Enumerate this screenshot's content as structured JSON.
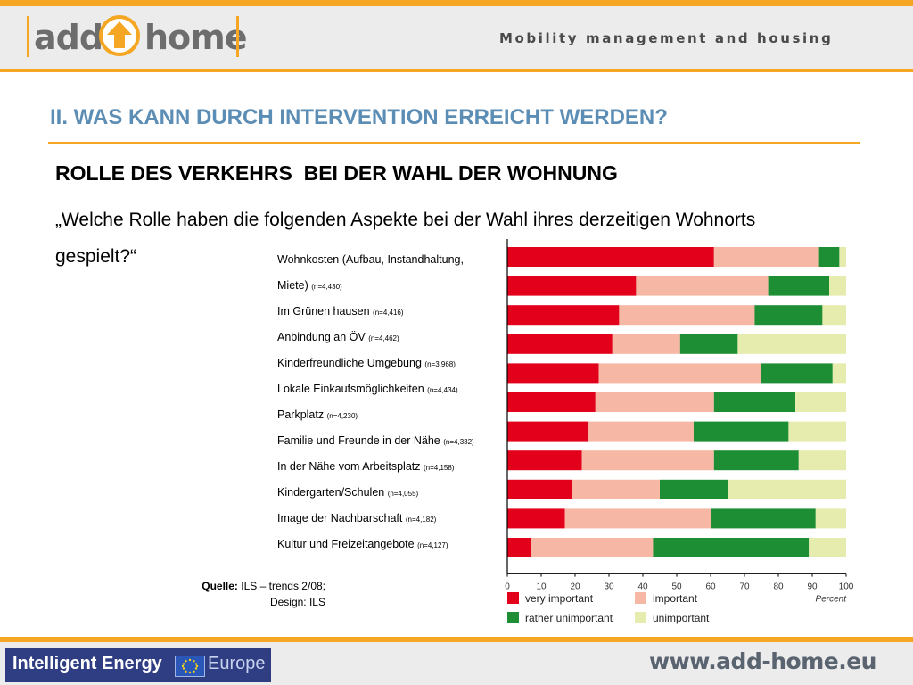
{
  "header": {
    "logo_left": "add",
    "logo_right": "home",
    "tagline": "Mobility management and housing"
  },
  "section_title": "II. WAS KANN DURCH INTERVENTION ERREICHT WERDEN?",
  "heading": "ROLLE DES VERKEHRS  BEI DER WAHL DER WOHNUNG",
  "question": "„Welche Rolle haben die folgenden Aspekte bei der Wahl ihres derzeitigen Wohnorts gespielt?“",
  "source": {
    "label": "Quelle:",
    "text": "ILS – trends 2/08;",
    "design": "Design: ILS"
  },
  "footer": {
    "brand": "Intelligent Energy",
    "europe": "Europe",
    "url": "www.add-home.eu"
  },
  "colors": {
    "accent": "#f5a623",
    "title": "#5b8db5",
    "very_important": "#e2001a",
    "important": "#f6b7a4",
    "rather_unimportant": "#1e8e34",
    "unimportant": "#e6ebae"
  },
  "chart_data": {
    "type": "bar",
    "orientation": "horizontal",
    "stacked": true,
    "categories": [
      {
        "line1": "Wohnkosten (Aufbau, Instandhaltung,",
        "line2": "Miete)",
        "n": "(n=4,430)"
      },
      {
        "line1": "Im Grünen hausen",
        "n": "(n=4,416)"
      },
      {
        "line1": "Anbindung an ÖV",
        "n": "(n=4,462)"
      },
      {
        "line1": "Kinderfreundliche Umgebung",
        "n": "(n=3,968)"
      },
      {
        "line1": "Lokale Einkaufsmöglichkeiten",
        "n": "(n=4,434)"
      },
      {
        "line1": "Parkplatz",
        "n": "(n=4,230)"
      },
      {
        "line1": "Familie und Freunde in der Nähe",
        "n": "(n=4,332)"
      },
      {
        "line1": "In der Nähe vom Arbeitsplatz",
        "n": "(n=4,158)"
      },
      {
        "line1": "Kindergarten/Schulen",
        "n": "(n=4,055)"
      },
      {
        "line1": "Image der Nachbarschaft",
        "n": "(n=4,182)"
      },
      {
        "line1": "Kultur und Freizeitangebote",
        "n": "(n=4,127)"
      }
    ],
    "series": [
      {
        "name": "very important",
        "color": "#e2001a",
        "values": [
          61,
          38,
          33,
          31,
          27,
          26,
          24,
          22,
          19,
          17,
          7
        ]
      },
      {
        "name": "important",
        "color": "#f6b7a4",
        "values": [
          31,
          39,
          40,
          20,
          48,
          35,
          31,
          39,
          26,
          43,
          36
        ]
      },
      {
        "name": "rather unimportant",
        "color": "#1e8e34",
        "values": [
          6,
          18,
          20,
          17,
          21,
          24,
          28,
          25,
          20,
          31,
          46
        ]
      },
      {
        "name": "unimportant",
        "color": "#e6ebae",
        "values": [
          2,
          5,
          7,
          32,
          4,
          15,
          17,
          14,
          35,
          9,
          11
        ]
      }
    ],
    "xlim": [
      0,
      100
    ],
    "xticks": [
      0,
      10,
      20,
      30,
      40,
      50,
      60,
      70,
      80,
      90,
      100
    ],
    "xlabel": "Percent",
    "legend_position": "bottom"
  }
}
